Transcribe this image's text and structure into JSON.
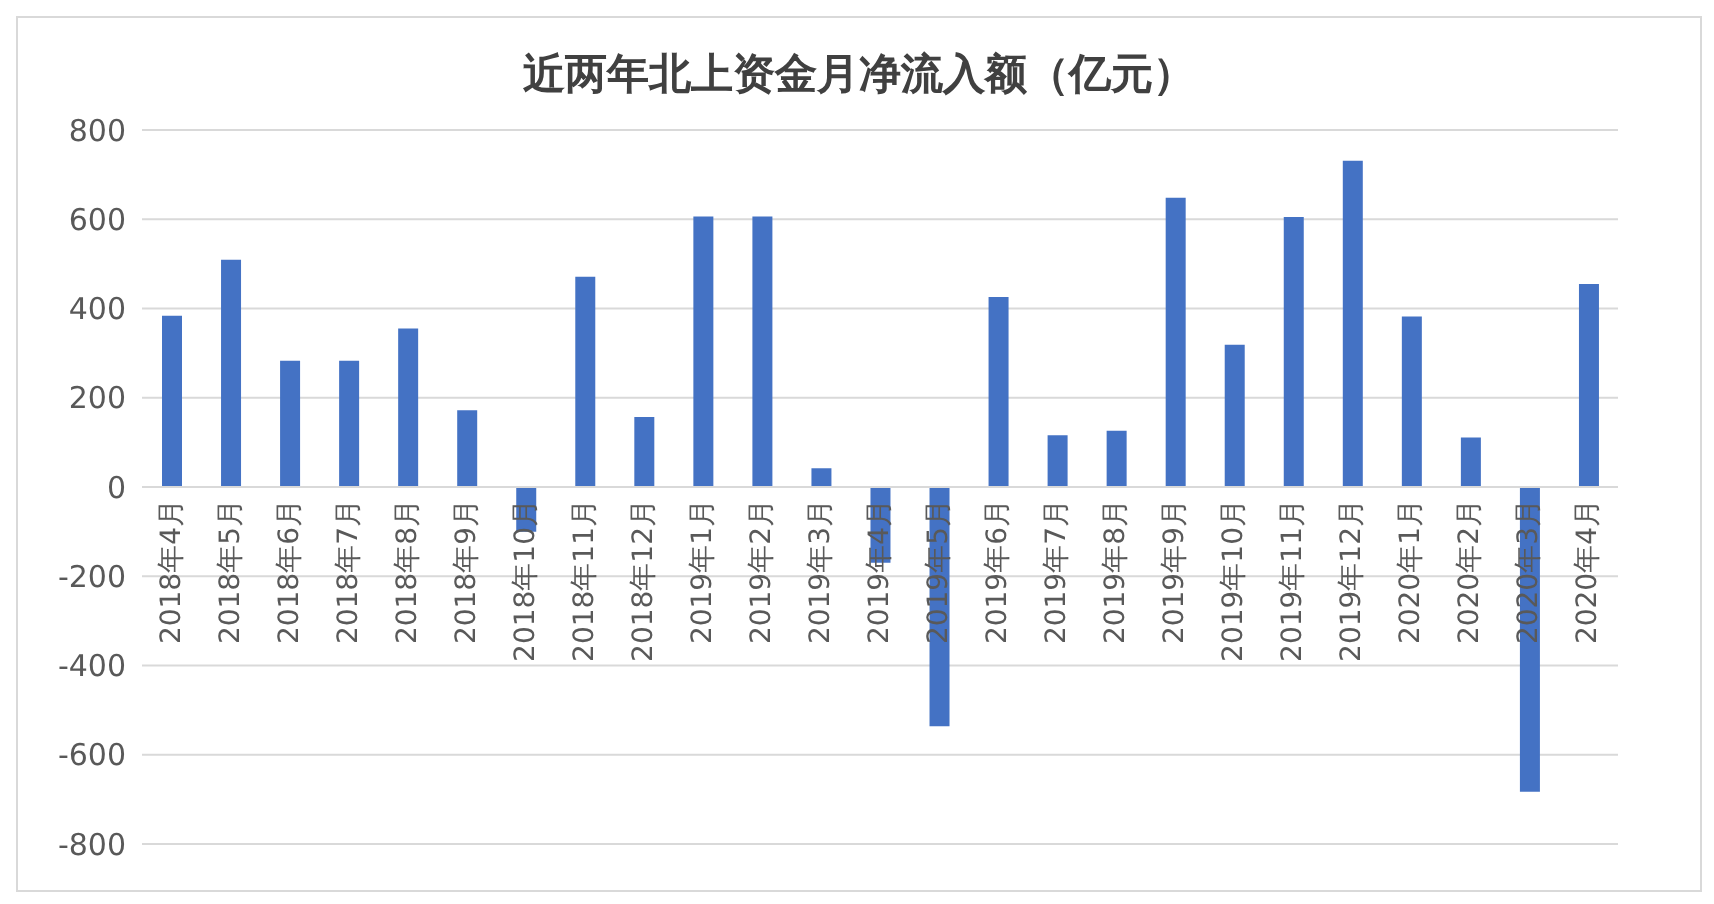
{
  "chart_data": {
    "type": "bar",
    "title": "近两年北上资金月净流入额（亿元）",
    "categories": [
      "2018年4月",
      "2018年5月",
      "2018年6月",
      "2018年7月",
      "2018年8月",
      "2018年9月",
      "2018年10月",
      "2018年11月",
      "2018年12月",
      "2019年1月",
      "2019年2月",
      "2019年3月",
      "2019年4月",
      "2019年5月",
      "2019年6月",
      "2019年7月",
      "2019年8月",
      "2019年9月",
      "2019年10月",
      "2019年11月",
      "2019年12月",
      "2020年1月",
      "2020年2月",
      "2020年3月",
      "2020年4月"
    ],
    "values": [
      384,
      509,
      283,
      283,
      355,
      172,
      -100,
      471,
      157,
      606,
      606,
      42,
      -170,
      -536,
      426,
      116,
      126,
      648,
      319,
      605,
      731,
      382,
      111,
      -683,
      455
    ],
    "color": "#4472c4",
    "ylim": [
      -800,
      800
    ],
    "yticks": [
      -800,
      -600,
      -400,
      -200,
      0,
      200,
      400,
      600,
      800
    ],
    "grid": "y"
  }
}
